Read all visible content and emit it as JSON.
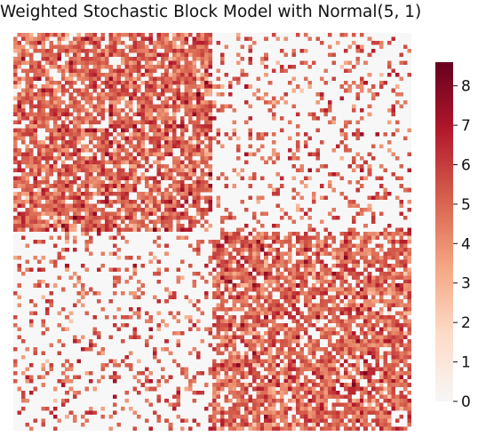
{
  "chart_data": {
    "type": "heatmap",
    "title": "Weighted Stochastic Block Model with Normal(5, 1)",
    "matrix_size": 100,
    "blocks": [
      {
        "rows": [
          0,
          49
        ],
        "cols": [
          0,
          49
        ],
        "edge_probability": 0.8
      },
      {
        "rows": [
          0,
          49
        ],
        "cols": [
          50,
          99
        ],
        "edge_probability": 0.2
      },
      {
        "rows": [
          50,
          99
        ],
        "cols": [
          0,
          49
        ],
        "edge_probability": 0.2
      },
      {
        "rows": [
          50,
          99
        ],
        "cols": [
          50,
          99
        ],
        "edge_probability": 0.8
      }
    ],
    "edge_weight_distribution": {
      "name": "Normal",
      "mean": 5,
      "std": 1
    },
    "xlabel": "",
    "ylabel": "",
    "colorbar": {
      "range": [
        0,
        8.6
      ],
      "ticks": [
        0,
        1,
        2,
        3,
        4,
        5,
        6,
        7,
        8
      ],
      "tick_labels": [
        "0",
        "1",
        "2",
        "3",
        "4",
        "5",
        "6",
        "7",
        "8"
      ],
      "colormap": "RdBu_r",
      "placement": "right"
    },
    "colors": [
      "#f7f7f7",
      "#fddbc7",
      "#f4a582",
      "#d6604d",
      "#b2182b",
      "#67001f"
    ]
  }
}
